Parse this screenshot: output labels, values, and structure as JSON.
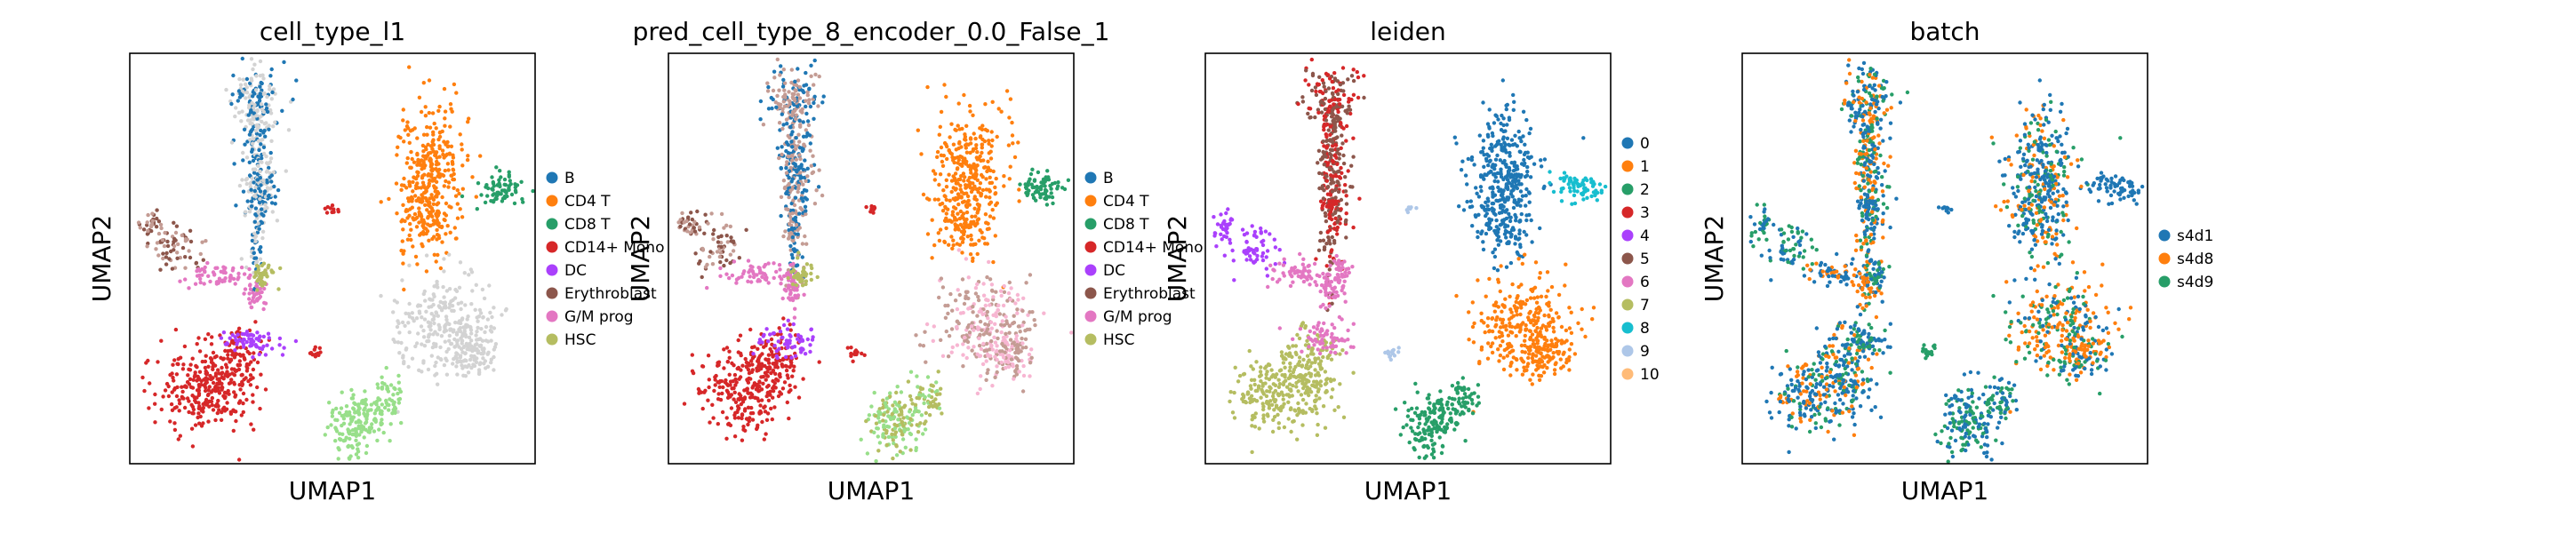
{
  "chart_data": [
    {
      "type": "scatter",
      "title": "cell_type_l1",
      "xlabel": "UMAP1",
      "ylabel": "UMAP2",
      "legend_position": "right",
      "legend": [
        {
          "label": "B",
          "color": "#1f77b4"
        },
        {
          "label": "CD4 T",
          "color": "#ff7f0e"
        },
        {
          "label": "CD8 T",
          "color": "#279e68"
        },
        {
          "label": "CD14+ Mono",
          "color": "#d62728"
        },
        {
          "label": "DC",
          "color": "#aa40fc"
        },
        {
          "label": "Erythroblast",
          "color": "#8c564b"
        },
        {
          "label": "G/M prog",
          "color": "#e377c2"
        },
        {
          "label": "HSC",
          "color": "#b5bd61"
        }
      ],
      "other_point_colors": [
        "#d3d3d3",
        "#aec7e8",
        "#98df8a",
        "#c49c94"
      ]
    },
    {
      "type": "scatter",
      "title": "pred_cell_type_8_encoder_0.0_False_1",
      "xlabel": "UMAP1",
      "ylabel": "UMAP2",
      "legend_position": "right",
      "legend": [
        {
          "label": "B",
          "color": "#1f77b4"
        },
        {
          "label": "CD4 T",
          "color": "#ff7f0e"
        },
        {
          "label": "CD8 T",
          "color": "#279e68"
        },
        {
          "label": "CD14+ Mono",
          "color": "#d62728"
        },
        {
          "label": "DC",
          "color": "#aa40fc"
        },
        {
          "label": "Erythroblast",
          "color": "#8c564b"
        },
        {
          "label": "G/M prog",
          "color": "#e377c2"
        },
        {
          "label": "HSC",
          "color": "#b5bd61"
        }
      ],
      "other_point_colors": [
        "#c49c94",
        "#aec7e8",
        "#98df8a",
        "#f7b6d2"
      ]
    },
    {
      "type": "scatter",
      "title": "leiden",
      "xlabel": "UMAP1",
      "ylabel": "UMAP2",
      "legend_position": "right",
      "legend": [
        {
          "label": "0",
          "color": "#1f77b4"
        },
        {
          "label": "1",
          "color": "#ff7f0e"
        },
        {
          "label": "2",
          "color": "#279e68"
        },
        {
          "label": "3",
          "color": "#d62728"
        },
        {
          "label": "4",
          "color": "#aa40fc"
        },
        {
          "label": "5",
          "color": "#8c564b"
        },
        {
          "label": "6",
          "color": "#e377c2"
        },
        {
          "label": "7",
          "color": "#b5bd61"
        },
        {
          "label": "8",
          "color": "#17becf"
        },
        {
          "label": "9",
          "color": "#aec7e8"
        },
        {
          "label": "10",
          "color": "#ffbb78"
        }
      ]
    },
    {
      "type": "scatter",
      "title": "batch",
      "xlabel": "UMAP1",
      "ylabel": "UMAP2",
      "legend_position": "right",
      "legend": [
        {
          "label": "s4d1",
          "color": "#1f77b4"
        },
        {
          "label": "s4d8",
          "color": "#ff7f0e"
        },
        {
          "label": "s4d9",
          "color": "#279e68"
        }
      ]
    }
  ]
}
